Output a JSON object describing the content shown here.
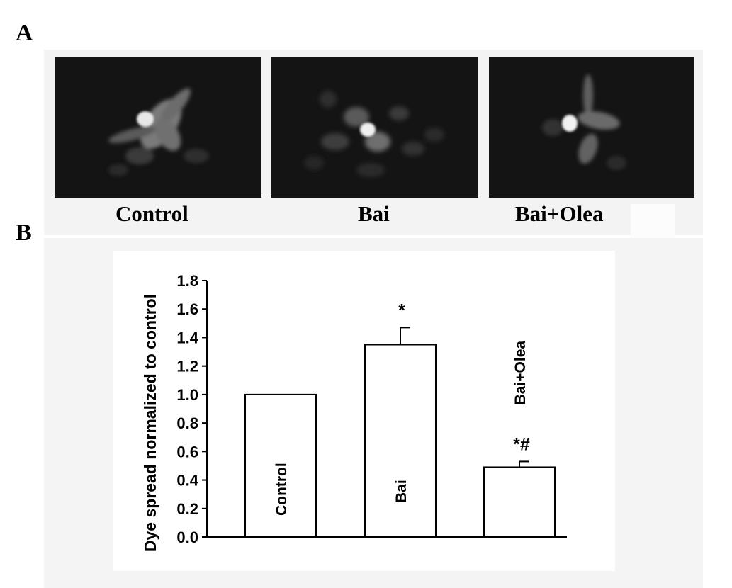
{
  "panels": {
    "a_letter": "A",
    "b_letter": "B"
  },
  "micrographs": [
    {
      "label": "Control"
    },
    {
      "label": "Bai"
    },
    {
      "label": "Bai+Olea"
    }
  ],
  "chart_data": {
    "type": "bar",
    "categories": [
      "Control",
      "Bai",
      "Bai+Olea"
    ],
    "values": [
      1.0,
      1.35,
      0.49
    ],
    "errors": [
      0,
      0.12,
      0.04
    ],
    "annotations": [
      "",
      "*",
      "*#"
    ],
    "xlabel": "",
    "ylabel": "Dye spread normalized to control",
    "ylim": [
      0.0,
      1.8
    ],
    "yticks": [
      "0.0",
      "0.2",
      "0.4",
      "0.6",
      "0.8",
      "1.0",
      "1.2",
      "1.4",
      "1.6",
      "1.8"
    ],
    "grid": false,
    "bar_fill": "#ffffff",
    "bar_stroke": "#000000"
  }
}
